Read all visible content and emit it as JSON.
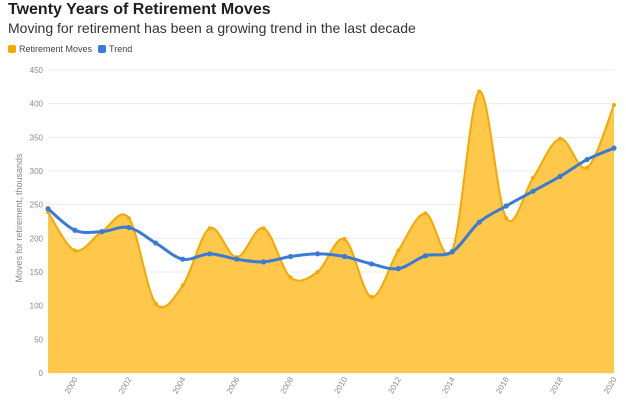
{
  "colors": {
    "area_fill": "#FFC84A",
    "area_line": "#F5A800",
    "trend": "#3A7BD5",
    "grid": "#EBEBEB"
  },
  "chart_data": {
    "type": "area",
    "title": "Twenty Years of Retirement Moves",
    "subtitle": "Moving for retirement has been a growing trend in the last decade",
    "ylabel": "Moves for retirement, thousands",
    "xlabel": "",
    "ylim": [
      0,
      450
    ],
    "y_ticks": [
      "0",
      "50",
      "100",
      "150",
      "200",
      "250",
      "300",
      "350",
      "400",
      "450"
    ],
    "x_ticks": [
      "2000",
      "2002",
      "2004",
      "2006",
      "2008",
      "2010",
      "2012",
      "2014",
      "2016",
      "2018",
      "2020"
    ],
    "x": [
      1999,
      2000,
      2001,
      2002,
      2003,
      2004,
      2005,
      2006,
      2007,
      2008,
      2009,
      2010,
      2011,
      2012,
      2013,
      2014,
      2015,
      2016,
      2017,
      2018,
      2019,
      2020
    ],
    "legend_position": "top-left",
    "grid": true,
    "series": [
      {
        "name": "Retirement Moves",
        "type": "area",
        "values": [
          239,
          182,
          210,
          230,
          103,
          130,
          215,
          172,
          215,
          142,
          150,
          199,
          113,
          182,
          237,
          182,
          418,
          230,
          290,
          348,
          305,
          398
        ]
      },
      {
        "name": "Trend",
        "type": "line",
        "values": [
          244,
          212,
          210,
          216,
          193,
          169,
          177,
          169,
          165,
          173,
          177,
          173,
          162,
          155,
          174,
          180,
          224,
          248,
          270,
          292,
          317,
          334
        ]
      }
    ]
  }
}
